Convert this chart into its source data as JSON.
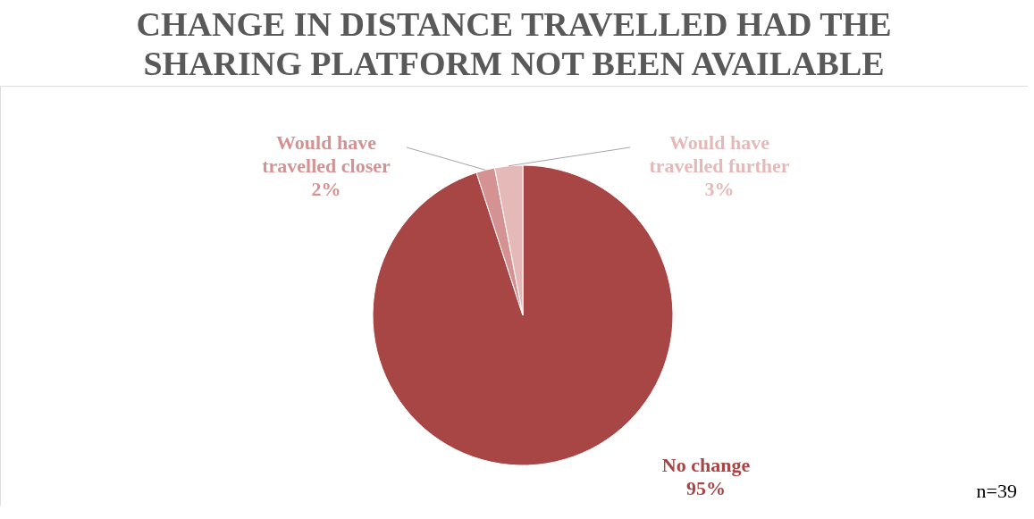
{
  "chart_data": {
    "type": "pie",
    "title": "CHANGE IN DISTANCE TRAVELLED HAD THE SHARING PLATFORM NOT BEEN AVAILABLE",
    "categories": [
      "No change",
      "Would have travelled closer",
      "Would have travelled further"
    ],
    "values": [
      95,
      2,
      3
    ],
    "value_labels": [
      "95%",
      "2%",
      "3%"
    ],
    "colors": [
      "#a84545",
      "#d49292",
      "#e6b9b9"
    ],
    "legend": false,
    "annotations": [
      "n=39"
    ]
  }
}
